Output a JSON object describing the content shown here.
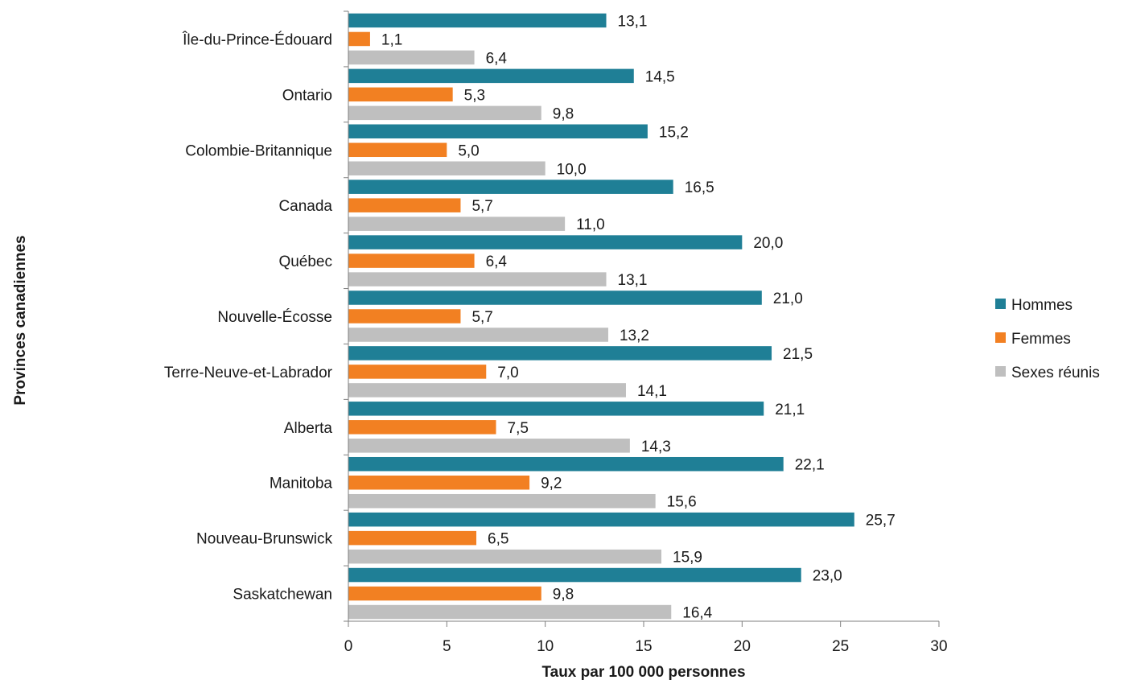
{
  "chart_data": {
    "type": "bar",
    "orientation": "horizontal",
    "categories": [
      "Île-du-Prince-Édouard",
      "Ontario",
      "Colombie-Britannique",
      "Canada",
      "Québec",
      "Nouvelle-Écosse",
      "Terre-Neuve-et-Labrador",
      "Alberta",
      "Manitoba",
      "Nouveau-Brunswick",
      "Saskatchewan"
    ],
    "series": [
      {
        "name": "Hommes",
        "color": "#1f7f96",
        "values": [
          13.1,
          14.5,
          15.2,
          16.5,
          20.0,
          21.0,
          21.5,
          21.1,
          22.1,
          25.7,
          23.0
        ],
        "labels": [
          "13,1",
          "14,5",
          "15,2",
          "16,5",
          "20,0",
          "21,0",
          "21,5",
          "21,1",
          "22,1",
          "25,7",
          "23,0"
        ]
      },
      {
        "name": "Femmes",
        "color": "#f28022",
        "values": [
          1.1,
          5.3,
          5.0,
          5.7,
          6.4,
          5.7,
          7.0,
          7.5,
          9.2,
          6.5,
          9.8
        ],
        "labels": [
          "1,1",
          "5,3",
          "5,0",
          "5,7",
          "6,4",
          "5,7",
          "7,0",
          "7,5",
          "9,2",
          "6,5",
          "9,8"
        ]
      },
      {
        "name": "Sexes réunis",
        "color": "#bfbfbf",
        "values": [
          6.4,
          9.8,
          10.0,
          11.0,
          13.1,
          13.2,
          14.1,
          14.3,
          15.6,
          15.9,
          16.4
        ],
        "labels": [
          "6,4",
          "9,8",
          "10,0",
          "11,0",
          "13,1",
          "13,2",
          "14,1",
          "14,3",
          "15,6",
          "15,9",
          "16,4"
        ]
      }
    ],
    "xlabel": "Taux par 100 000 personnes",
    "ylabel": "Provinces canadiennes",
    "xlim": [
      0,
      30
    ],
    "xticks": [
      0,
      5,
      10,
      15,
      20,
      25,
      30
    ],
    "grid": false,
    "legend_position": "right"
  }
}
